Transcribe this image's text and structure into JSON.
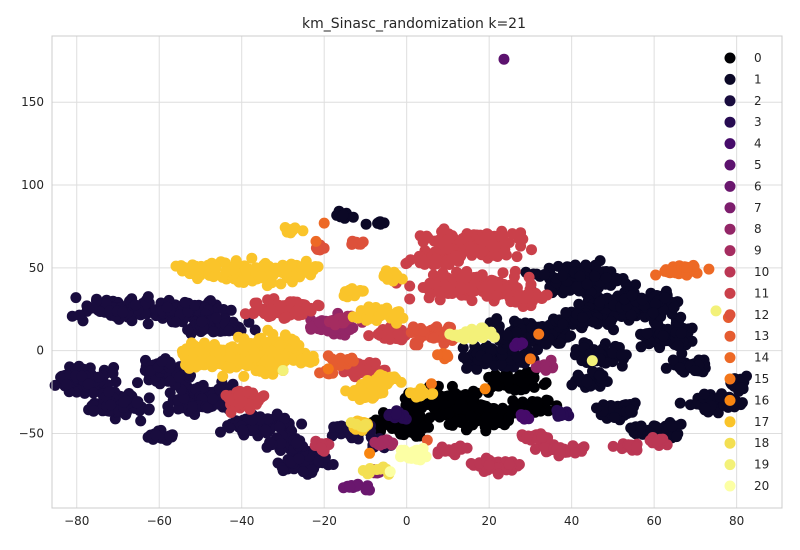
{
  "chart_data": {
    "type": "scatter",
    "title": "km_Sinasc_randomization k=21",
    "xlabel": "",
    "ylabel": "",
    "xlim": [
      -86,
      91
    ],
    "ylim": [
      -95,
      190
    ],
    "xticks": [
      -80,
      -60,
      -40,
      -20,
      0,
      20,
      40,
      60,
      80
    ],
    "yticks": [
      -50,
      0,
      50,
      100,
      150
    ],
    "grid": true,
    "legend_position": "right",
    "series": [
      {
        "name": "0",
        "color": "#000004",
        "clusters": [
          [
            8,
            -32,
            10,
            9
          ],
          [
            -1,
            -46,
            7,
            7
          ],
          [
            17,
            -38,
            9,
            8
          ],
          [
            26,
            -19,
            7,
            6
          ],
          [
            30,
            -34,
            5,
            5
          ]
        ]
      },
      {
        "name": "1",
        "color": "#0b0826",
        "clusters": [
          [
            43,
            44,
            11,
            10
          ],
          [
            22,
            -4,
            10,
            7
          ],
          [
            31,
            10,
            10,
            8
          ],
          [
            48,
            -3,
            7,
            6
          ],
          [
            50,
            26,
            7,
            8
          ],
          [
            62,
            9,
            7,
            8
          ],
          [
            58,
            28,
            9,
            8
          ],
          [
            51,
            -36,
            5,
            6
          ],
          [
            45,
            -18,
            5,
            5
          ],
          [
            60,
            -48,
            7,
            5
          ],
          [
            74,
            -32,
            6,
            6
          ],
          [
            69,
            -9,
            5,
            5
          ],
          [
            43,
            19,
            7,
            6
          ],
          [
            80,
            -20,
            3,
            5
          ],
          [
            -15,
            82,
            3,
            2
          ],
          [
            -7,
            77,
            3,
            2
          ]
        ]
      },
      {
        "name": "2",
        "color": "#190c3e",
        "clusters": [
          [
            -68,
            25,
            11,
            7
          ],
          [
            -52,
            24,
            9,
            7
          ],
          [
            -78,
            -18,
            7,
            9
          ],
          [
            -70,
            -32,
            7,
            8
          ],
          [
            -47,
            15,
            8,
            5
          ],
          [
            -50,
            -29,
            8,
            9
          ],
          [
            -59,
            -12,
            6,
            8
          ],
          [
            -36,
            -45,
            9,
            6
          ],
          [
            -25,
            -68,
            6,
            7
          ],
          [
            -13,
            -48,
            6,
            5
          ],
          [
            -29,
            -56,
            5,
            5
          ],
          [
            -60,
            -52,
            4,
            4
          ],
          [
            -6,
            -56,
            3,
            4
          ]
        ]
      },
      {
        "name": "3",
        "color": "#270b52",
        "clusters": [
          [
            37,
            -38,
            3,
            3
          ],
          [
            -2,
            -39,
            3,
            3
          ]
        ]
      },
      {
        "name": "4",
        "color": "#460b6a",
        "clusters": [
          [
            29,
            -40,
            2,
            2
          ],
          [
            27,
            4,
            2,
            2
          ]
        ]
      },
      {
        "name": "5",
        "color": "#5c126e",
        "clusters": [
          [
            23.6,
            176,
            1,
            1
          ]
        ]
      },
      {
        "name": "6",
        "color": "#6a176e",
        "clusters": [
          [
            -12,
            -82,
            4,
            2
          ]
        ]
      },
      {
        "name": "7",
        "color": "#7d1e6d",
        "clusters": [
          [
            -7,
            -73,
            2,
            2
          ]
        ]
      },
      {
        "name": "8",
        "color": "#932667",
        "clusters": [
          [
            -18,
            15,
            7,
            6
          ],
          [
            33,
            -10,
            3,
            3
          ]
        ]
      },
      {
        "name": "9",
        "color": "#a52c60",
        "clusters": [
          [
            -16,
            19,
            4,
            3
          ],
          [
            -6,
            -56,
            3,
            3
          ]
        ]
      },
      {
        "name": "10",
        "color": "#bb3754",
        "clusters": [
          [
            37,
            -60,
            6,
            4
          ],
          [
            22,
            -70,
            6,
            5
          ],
          [
            53,
            -58,
            4,
            3
          ],
          [
            10,
            -60,
            4,
            3
          ],
          [
            -20,
            -58,
            3,
            3
          ],
          [
            31,
            -52,
            4,
            3
          ],
          [
            60,
            -55,
            3,
            3
          ]
        ]
      },
      {
        "name": "11",
        "color": "#ca404a",
        "clusters": [
          [
            16,
            64,
            12,
            9
          ],
          [
            15,
            39,
            13,
            8
          ],
          [
            -30,
            25,
            9,
            6
          ],
          [
            -40,
            -30,
            5,
            7
          ],
          [
            6,
            55,
            6,
            4
          ],
          [
            29,
            32,
            6,
            5
          ],
          [
            -3,
            10,
            5,
            5
          ],
          [
            -10,
            -11,
            6,
            5
          ]
        ]
      },
      {
        "name": "12",
        "color": "#dd513a",
        "clusters": [
          [
            6,
            10,
            6,
            6
          ],
          [
            -21,
            62,
            2,
            2
          ],
          [
            -13,
            65,
            2,
            2
          ]
        ]
      },
      {
        "name": "13",
        "color": "#e55c30",
        "clusters": [
          [
            -16,
            -6,
            4,
            3
          ],
          [
            5,
            -54,
            1,
            1
          ],
          [
            78,
            20,
            1,
            1
          ],
          [
            -19,
            -14,
            2,
            2
          ]
        ]
      },
      {
        "name": "14",
        "color": "#ed6925",
        "clusters": [
          [
            66,
            48,
            6,
            4
          ],
          [
            9,
            -3,
            2,
            2
          ],
          [
            -20,
            77,
            1,
            1
          ],
          [
            -22,
            66,
            1,
            1
          ]
        ]
      },
      {
        "name": "15",
        "color": "#f3771a",
        "clusters": [
          [
            30,
            -5,
            1,
            1
          ],
          [
            6,
            -20,
            1,
            1
          ],
          [
            32,
            10,
            1,
            1
          ],
          [
            -19,
            -11,
            1,
            1
          ]
        ]
      },
      {
        "name": "16",
        "color": "#f8850f",
        "clusters": [
          [
            19,
            -23,
            1,
            1
          ],
          [
            -30,
            -12,
            1,
            1
          ],
          [
            -8,
            -28,
            1,
            1
          ],
          [
            -9,
            -62,
            1,
            1
          ]
        ]
      },
      {
        "name": "17",
        "color": "#fac42a",
        "clusters": [
          [
            -38,
            47,
            11,
            7
          ],
          [
            -50,
            48,
            6,
            5
          ],
          [
            -37,
            -2,
            12,
            11
          ],
          [
            -50,
            -2,
            6,
            8
          ],
          [
            -26,
            49,
            6,
            5
          ],
          [
            -10,
            -25,
            5,
            5
          ],
          [
            -5,
            -18,
            4,
            4
          ],
          [
            -7,
            22,
            6,
            5
          ],
          [
            -28,
            73,
            3,
            2
          ],
          [
            -11,
            -45,
            3,
            4
          ],
          [
            -13,
            35,
            3,
            3
          ],
          [
            -4,
            45,
            3,
            3
          ],
          [
            -24,
            -5,
            3,
            3
          ],
          [
            4,
            -26,
            3,
            3
          ]
        ]
      },
      {
        "name": "18",
        "color": "#f3df52",
        "clusters": [
          [
            -9,
            -73,
            2,
            2
          ],
          [
            -6,
            -72,
            2,
            2
          ],
          [
            -11,
            -45,
            2,
            2
          ]
        ]
      },
      {
        "name": "19",
        "color": "#f3f179",
        "clusters": [
          [
            16,
            10,
            6,
            4
          ],
          [
            -30,
            -12,
            1,
            1
          ],
          [
            45,
            -6,
            1,
            1
          ],
          [
            75,
            24,
            1,
            1
          ]
        ]
      },
      {
        "name": "20",
        "color": "#fcffa4",
        "clusters": [
          [
            2,
            -62,
            4,
            5
          ],
          [
            -4,
            -73,
            1,
            1
          ]
        ]
      }
    ]
  }
}
